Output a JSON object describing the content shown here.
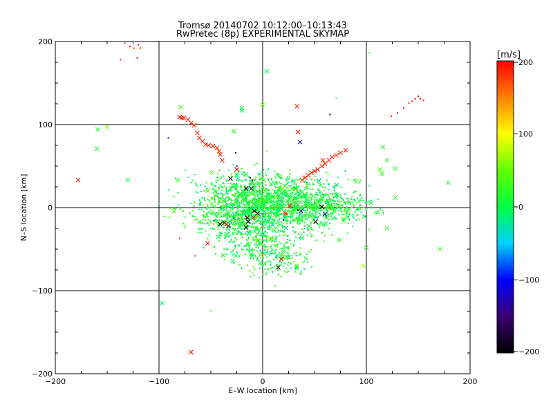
{
  "chart_data": {
    "type": "scatter",
    "title": "Tromsø 20140702 10:12:00–10:13:43",
    "subtitle": "RwPretec (8p) EXPERIMENTAL SKYMAP",
    "xlabel": "E–W location [km]",
    "ylabel": "N–S location [km]",
    "xlim": [
      -200,
      200
    ],
    "ylim": [
      -200,
      200
    ],
    "xticks": [
      "−200",
      "−100",
      "0",
      "100",
      "200"
    ],
    "xtick_values": [
      -200,
      -100,
      0,
      100,
      200
    ],
    "yticks": [
      "−200",
      "−100",
      "0",
      "100",
      "200"
    ],
    "ytick_values": [
      -200,
      -100,
      0,
      100,
      200
    ],
    "grid": true,
    "colorbar": {
      "label": "[m/s]",
      "range": [
        -200,
        200
      ],
      "ticks": [
        "200",
        "100",
        "0",
        "−100",
        "−200"
      ],
      "tick_values": [
        200,
        100,
        0,
        -100,
        -200
      ],
      "colormap": "rainbow: black (−200) → blue (−100) → cyan → green (0) → yellow (100) → red (200)"
    },
    "notes": "Markers: small dots/pluses for the dense cloud and 'x' crosses for larger echoes; colour encodes line-of-sight velocity.",
    "points": [
      {
        "x": -137,
        "y": 178,
        "v": 190,
        "m": "dot"
      },
      {
        "x": -133,
        "y": 198,
        "v": 190,
        "m": "dot"
      },
      {
        "x": -128,
        "y": 194,
        "v": 190,
        "m": "dot"
      },
      {
        "x": -124,
        "y": 192,
        "v": 185,
        "m": "dot"
      },
      {
        "x": -120,
        "y": 196,
        "v": 190,
        "m": "dot"
      },
      {
        "x": -121,
        "y": 180,
        "v": 190,
        "m": "dot"
      },
      {
        "x": -118,
        "y": 192,
        "v": 185,
        "m": "dot"
      },
      {
        "x": -80,
        "y": 109,
        "v": 190,
        "m": "x"
      },
      {
        "x": -76,
        "y": 108,
        "v": 190,
        "m": "x"
      },
      {
        "x": -72,
        "y": 106,
        "v": 190,
        "m": "x"
      },
      {
        "x": -69,
        "y": 102,
        "v": 185,
        "m": "x"
      },
      {
        "x": -66,
        "y": 99,
        "v": 185,
        "m": "x"
      },
      {
        "x": -63,
        "y": 90,
        "v": 185,
        "m": "x"
      },
      {
        "x": -61,
        "y": 84,
        "v": 185,
        "m": "x"
      },
      {
        "x": -58,
        "y": 80,
        "v": 185,
        "m": "x"
      },
      {
        "x": -55,
        "y": 76,
        "v": 185,
        "m": "x"
      },
      {
        "x": -52,
        "y": 75,
        "v": 185,
        "m": "x"
      },
      {
        "x": -48,
        "y": 74,
        "v": 185,
        "m": "x"
      },
      {
        "x": -44,
        "y": 72,
        "v": 185,
        "m": "x"
      },
      {
        "x": -42,
        "y": 68,
        "v": 185,
        "m": "x"
      },
      {
        "x": -41,
        "y": 64,
        "v": 185,
        "m": "x"
      },
      {
        "x": -39,
        "y": 57,
        "v": 185,
        "m": "x"
      },
      {
        "x": -79,
        "y": 121,
        "v": 40,
        "m": "x"
      },
      {
        "x": -78,
        "y": 108,
        "v": 185,
        "m": "x"
      },
      {
        "x": -91,
        "y": 84,
        "v": -130,
        "m": "dot"
      },
      {
        "x": -159,
        "y": 94,
        "v": 20,
        "m": "x"
      },
      {
        "x": -150,
        "y": 97,
        "v": 60,
        "m": "x"
      },
      {
        "x": -160,
        "y": 71,
        "v": 20,
        "m": "x"
      },
      {
        "x": -178,
        "y": 33,
        "v": 190,
        "m": "x"
      },
      {
        "x": -130,
        "y": 33,
        "v": -5,
        "m": "x"
      },
      {
        "x": -82,
        "y": 33,
        "v": 20,
        "m": "x"
      },
      {
        "x": -28,
        "y": 92,
        "v": 20,
        "m": "x"
      },
      {
        "x": -20,
        "y": 117,
        "v": -5,
        "m": "x"
      },
      {
        "x": -20,
        "y": 120,
        "v": -5,
        "m": "x"
      },
      {
        "x": 4,
        "y": 164,
        "v": -5,
        "m": "x"
      },
      {
        "x": 0,
        "y": 124,
        "v": 60,
        "m": "x"
      },
      {
        "x": 33,
        "y": 122,
        "v": 190,
        "m": "x"
      },
      {
        "x": 34,
        "y": 91,
        "v": 190,
        "m": "x"
      },
      {
        "x": 36,
        "y": 79,
        "v": -140,
        "m": "x"
      },
      {
        "x": 65,
        "y": 112,
        "v": -200,
        "m": "dot"
      },
      {
        "x": 71,
        "y": 132,
        "v": 20,
        "m": "dot"
      },
      {
        "x": 103,
        "y": 186,
        "v": 20,
        "m": "dot"
      },
      {
        "x": 4,
        "y": 68,
        "v": 60,
        "m": "dot"
      },
      {
        "x": -26,
        "y": 66,
        "v": -200,
        "m": "dot"
      },
      {
        "x": -25,
        "y": 46,
        "v": 190,
        "m": "x"
      },
      {
        "x": -25,
        "y": 50,
        "v": -150,
        "m": "dot"
      },
      {
        "x": -31,
        "y": 35,
        "v": -200,
        "m": "x"
      },
      {
        "x": -12,
        "y": 36,
        "v": -200,
        "m": "dot"
      },
      {
        "x": -10,
        "y": 33,
        "v": -200,
        "m": "dot"
      },
      {
        "x": -16,
        "y": 23,
        "v": -200,
        "m": "x"
      },
      {
        "x": -11,
        "y": 23,
        "v": -200,
        "m": "x"
      },
      {
        "x": 124,
        "y": 110,
        "v": 190,
        "m": "dot"
      },
      {
        "x": 130,
        "y": 114,
        "v": 190,
        "m": "dot"
      },
      {
        "x": 136,
        "y": 120,
        "v": 190,
        "m": "dot"
      },
      {
        "x": 141,
        "y": 126,
        "v": 190,
        "m": "dot"
      },
      {
        "x": 144,
        "y": 128,
        "v": 190,
        "m": "dot"
      },
      {
        "x": 147,
        "y": 131,
        "v": 190,
        "m": "dot"
      },
      {
        "x": 150,
        "y": 134,
        "v": 190,
        "m": "dot"
      },
      {
        "x": 152,
        "y": 131,
        "v": 190,
        "m": "dot"
      },
      {
        "x": 155,
        "y": 129,
        "v": 190,
        "m": "dot"
      },
      {
        "x": 38,
        "y": 33,
        "v": 185,
        "m": "x"
      },
      {
        "x": 41,
        "y": 36,
        "v": 185,
        "m": "x"
      },
      {
        "x": 44,
        "y": 39,
        "v": 185,
        "m": "x"
      },
      {
        "x": 47,
        "y": 42,
        "v": 185,
        "m": "x"
      },
      {
        "x": 50,
        "y": 44,
        "v": 185,
        "m": "x"
      },
      {
        "x": 53,
        "y": 46,
        "v": 185,
        "m": "x"
      },
      {
        "x": 57,
        "y": 50,
        "v": 185,
        "m": "x"
      },
      {
        "x": 60,
        "y": 53,
        "v": 185,
        "m": "x"
      },
      {
        "x": 64,
        "y": 57,
        "v": 185,
        "m": "x"
      },
      {
        "x": 67,
        "y": 61,
        "v": 185,
        "m": "x"
      },
      {
        "x": 71,
        "y": 63,
        "v": 185,
        "m": "x"
      },
      {
        "x": 75,
        "y": 66,
        "v": 185,
        "m": "x"
      },
      {
        "x": 80,
        "y": 69,
        "v": 185,
        "m": "x"
      },
      {
        "x": 58,
        "y": 57,
        "v": 185,
        "m": "x"
      },
      {
        "x": 116,
        "y": 73,
        "v": 20,
        "m": "x"
      },
      {
        "x": 120,
        "y": 57,
        "v": 20,
        "m": "x"
      },
      {
        "x": 128,
        "y": 47,
        "v": 20,
        "m": "x"
      },
      {
        "x": 113,
        "y": 46,
        "v": 40,
        "m": "x"
      },
      {
        "x": 115,
        "y": 41,
        "v": 20,
        "m": "x"
      },
      {
        "x": 128,
        "y": 12,
        "v": 20,
        "m": "x"
      },
      {
        "x": 179,
        "y": 30,
        "v": 20,
        "m": "x"
      },
      {
        "x": 171,
        "y": -50,
        "v": 20,
        "m": "x"
      },
      {
        "x": 97,
        "y": -70,
        "v": 70,
        "m": "x"
      },
      {
        "x": 100,
        "y": -48,
        "v": 20,
        "m": "x"
      },
      {
        "x": 120,
        "y": -25,
        "v": 20,
        "m": "x"
      },
      {
        "x": 74,
        "y": -39,
        "v": 20,
        "m": "x"
      },
      {
        "x": -97,
        "y": -115,
        "v": -10,
        "m": "x"
      },
      {
        "x": -69,
        "y": -174,
        "v": 190,
        "m": "x"
      },
      {
        "x": -50,
        "y": -124,
        "v": 20,
        "m": "dot"
      },
      {
        "x": -53,
        "y": -43,
        "v": 190,
        "m": "x"
      },
      {
        "x": -65,
        "y": -58,
        "v": 190,
        "m": "dot"
      },
      {
        "x": -80,
        "y": -37,
        "v": 190,
        "m": "dot"
      },
      {
        "x": -41,
        "y": -20,
        "v": -200,
        "m": "x"
      },
      {
        "x": -37,
        "y": -18,
        "v": -200,
        "m": "x"
      },
      {
        "x": -33,
        "y": -22,
        "v": -200,
        "m": "x"
      },
      {
        "x": -35,
        "y": -20,
        "v": 190,
        "m": "x"
      },
      {
        "x": -15,
        "y": -12,
        "v": -200,
        "m": "x"
      },
      {
        "x": -14,
        "y": -17,
        "v": -200,
        "m": "x"
      },
      {
        "x": -16,
        "y": -24,
        "v": -200,
        "m": "x"
      },
      {
        "x": -9,
        "y": -12,
        "v": 190,
        "m": "x"
      },
      {
        "x": -8,
        "y": -4,
        "v": -200,
        "m": "x"
      },
      {
        "x": -5,
        "y": -7,
        "v": -200,
        "m": "x"
      },
      {
        "x": 15,
        "y": -72,
        "v": -200,
        "m": "x"
      },
      {
        "x": 18,
        "y": -62,
        "v": 190,
        "m": "x"
      },
      {
        "x": 13,
        "y": -60,
        "v": 190,
        "m": "dot"
      },
      {
        "x": 22,
        "y": -7,
        "v": 190,
        "m": "x"
      },
      {
        "x": 51,
        "y": -17,
        "v": -200,
        "m": "x"
      },
      {
        "x": 57,
        "y": 1,
        "v": -200,
        "m": "x"
      },
      {
        "x": 34,
        "y": -3,
        "v": -200,
        "m": "dot"
      },
      {
        "x": 26,
        "y": 2,
        "v": 190,
        "m": "x"
      },
      {
        "x": 37,
        "y": -4,
        "v": -130,
        "m": "x"
      },
      {
        "x": 60,
        "y": -8,
        "v": -120,
        "m": "x"
      },
      {
        "x": 20,
        "y": -15,
        "v": -200,
        "m": "dot"
      },
      {
        "x": -47,
        "y": -16,
        "v": -200,
        "m": "dot"
      },
      {
        "x": -28,
        "y": -13,
        "v": -200,
        "m": "dot"
      },
      {
        "x": -1,
        "y": 30,
        "v": -10,
        "m": "dot"
      }
    ],
    "cloud": {
      "description": "dense field of small green/cyan echoes (v ≈ −20 … +40 m/s)",
      "count": 1400,
      "center": [
        5,
        5
      ],
      "spread": [
        45,
        22
      ],
      "secondary_blobs": [
        {
          "center": [
            -15,
            -20
          ],
          "spread": [
            22,
            28
          ],
          "count": 420
        },
        {
          "center": [
            15,
            -55
          ],
          "spread": [
            20,
            18
          ],
          "count": 200
        },
        {
          "center": [
            60,
            2
          ],
          "spread": [
            30,
            10
          ],
          "count": 300
        }
      ],
      "v_range": [
        -25,
        45
      ]
    }
  }
}
